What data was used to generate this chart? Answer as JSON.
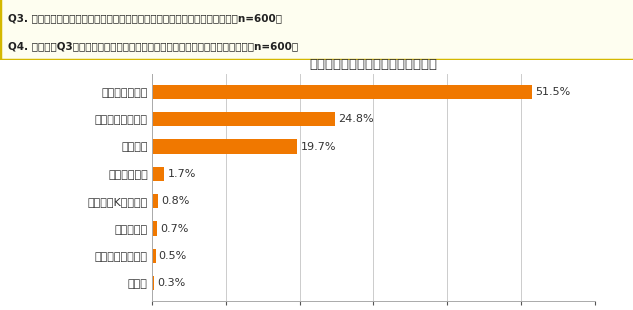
{
  "title": "【最も好きなコンビニのチェーン】",
  "header_line1": "Q3. あなたが最も好きなコンビニのチェーンを教えて下さい。（単数回答）【n=600】",
  "header_line2": "Q4. 前問で【Q3回答】とお答えになられた理由を教えて下さい。（複数回答）【n=600】",
  "categories": [
    "セブンイレブン",
    "ファミリーマート",
    "ローソン",
    "ミニストップ",
    "サークルKサンクス",
    "スリーエフ",
    "デイリーヤマザキ",
    "その他"
  ],
  "values": [
    51.5,
    24.8,
    19.7,
    1.7,
    0.8,
    0.7,
    0.5,
    0.3
  ],
  "bar_color": "#F07800",
  "bg_color": "#FFFFFF",
  "header_bg": "#FEFEF0",
  "header_border_color": "#D4B800",
  "xlim": [
    0,
    60
  ],
  "xticks": [
    0,
    10,
    20,
    30,
    40,
    50,
    60
  ],
  "value_fontsize": 8,
  "label_fontsize": 8,
  "title_fontsize": 9.5
}
